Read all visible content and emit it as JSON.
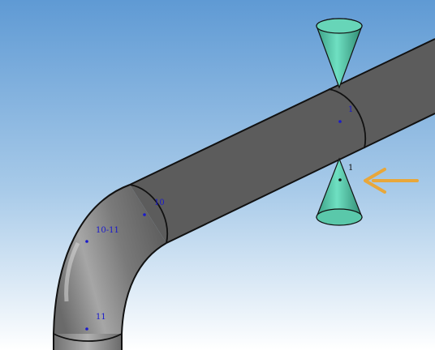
{
  "viewport": {
    "background_top": "#6aa3d8",
    "background_bottom": "#ffffff"
  },
  "pipe": {
    "color": "#8e8e8e",
    "edge_color": "#111111"
  },
  "points": [
    {
      "label": "1",
      "color": "#1a1acc"
    },
    {
      "label": "1",
      "color": "#111111"
    },
    {
      "label": "10",
      "color": "#1a1acc"
    },
    {
      "label": "10-11",
      "color": "#1a1acc"
    },
    {
      "label": "11",
      "color": "#1a1acc"
    }
  ],
  "markers": {
    "cone_color": "#5fd3b5",
    "arrow_color": "#e8a73a",
    "arrow_icon": "arrow-left-icon"
  }
}
